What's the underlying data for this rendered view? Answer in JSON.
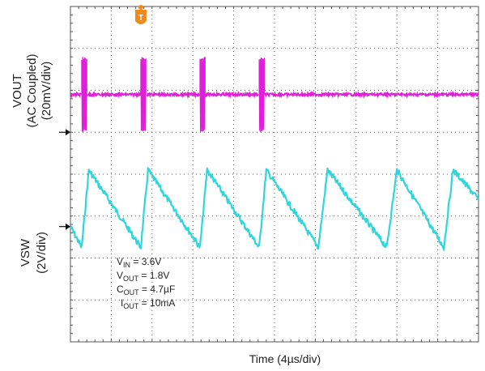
{
  "chart_data": {
    "type": "line",
    "title": "",
    "xlabel": "Time (4µs/div)",
    "x_unit": "µs",
    "x_per_div": 4,
    "x_divisions": 10,
    "channels": [
      {
        "name": "VOUT",
        "label_lines": [
          "VOUT",
          "(AC Coupled)",
          "(20mV/div)"
        ],
        "units_per_div": 20,
        "unit": "mV",
        "color": "#2fd6dc",
        "zero_div": 5.25,
        "waveform": "sawtooth",
        "x": [
          0.0,
          1.1,
          1.8,
          6.9,
          7.6,
          12.7,
          13.4,
          18.5,
          19.2,
          24.3,
          25.2,
          31.0,
          32.0,
          36.6,
          37.5,
          40.0
        ],
        "y": [
          0,
          -10,
          27,
          -10,
          27,
          -10,
          27,
          -10,
          27,
          -10,
          27,
          -10,
          27,
          -10,
          27,
          13
        ],
        "noise_divs": 0.07
      },
      {
        "name": "VSW",
        "label_lines": [
          "VSW",
          "(2V/div)"
        ],
        "units_per_div": 2,
        "unit": "V",
        "color": "#e020d8",
        "zero_div": 3.0,
        "waveform": "switching",
        "baseline": 1.8,
        "burst_x": [
          1.1,
          6.9,
          12.7,
          18.5
        ],
        "burst_width": 0.5,
        "burst_high": 3.6,
        "burst_low": 0,
        "noise_divs": 0.03
      }
    ],
    "trigger_marker": "T",
    "trigger_x": 6.9,
    "conditions": [
      {
        "main": "V",
        "sub": "IN",
        "rest": " = 3.6V"
      },
      {
        "main": "V",
        "sub": "OUT",
        "rest": " = 1.8V"
      },
      {
        "main": "C",
        "sub": "OUT",
        "rest": " = 4.7µF"
      },
      {
        "main": "I",
        "sub": "OUT",
        "rest": " = 10mA"
      }
    ],
    "grid": true,
    "colors": {
      "grid": "#555555",
      "trigger": "#f08a1c"
    }
  }
}
